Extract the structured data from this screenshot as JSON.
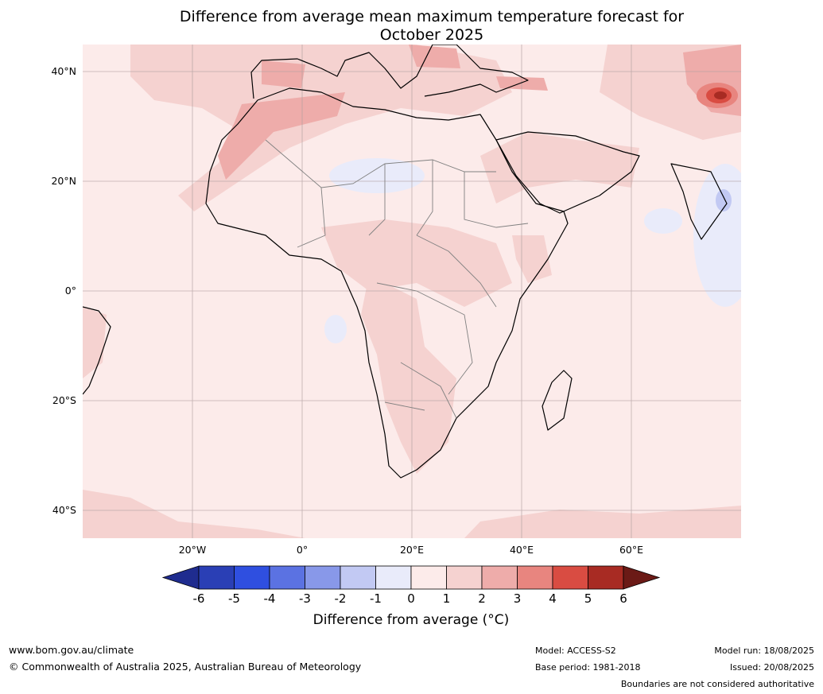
{
  "title": {
    "line1": "Difference from average mean maximum temperature forecast for",
    "line2": "October 2025"
  },
  "map": {
    "region": "Africa, Europe and Middle East",
    "lat_labels": [
      "40°N",
      "20°N",
      "0°",
      "20°S",
      "40°S"
    ],
    "lon_labels": [
      "20°W",
      "0°",
      "20°E",
      "40°E",
      "60°E"
    ],
    "background_color": "#fcebea"
  },
  "colorbar": {
    "ticks": [
      "-6",
      "-5",
      "-4",
      "-3",
      "-2",
      "-1",
      "0",
      "1",
      "2",
      "3",
      "4",
      "5",
      "6"
    ],
    "colors": [
      "#1f2c8f",
      "#2a3fb5",
      "#2f4fe0",
      "#5b72e2",
      "#8898e9",
      "#c2c9f3",
      "#e9ebfa",
      "#fcebea",
      "#f5d2d0",
      "#eeacaa",
      "#e8857f",
      "#d94c42",
      "#a82b23",
      "#6b1a16"
    ],
    "label": "Difference from average (°C)"
  },
  "footer": {
    "website": "www.bom.gov.au/climate",
    "copyright": "© Commonwealth of Australia 2025, Australian Bureau of Meteorology",
    "model": "Model: ACCESS-S2",
    "base_period": "Base period: 1981-2018",
    "model_run": "Model run: 18/08/2025",
    "issued": "Issued: 20/08/2025",
    "disclaimer": "Boundaries are not considered authoritative"
  }
}
